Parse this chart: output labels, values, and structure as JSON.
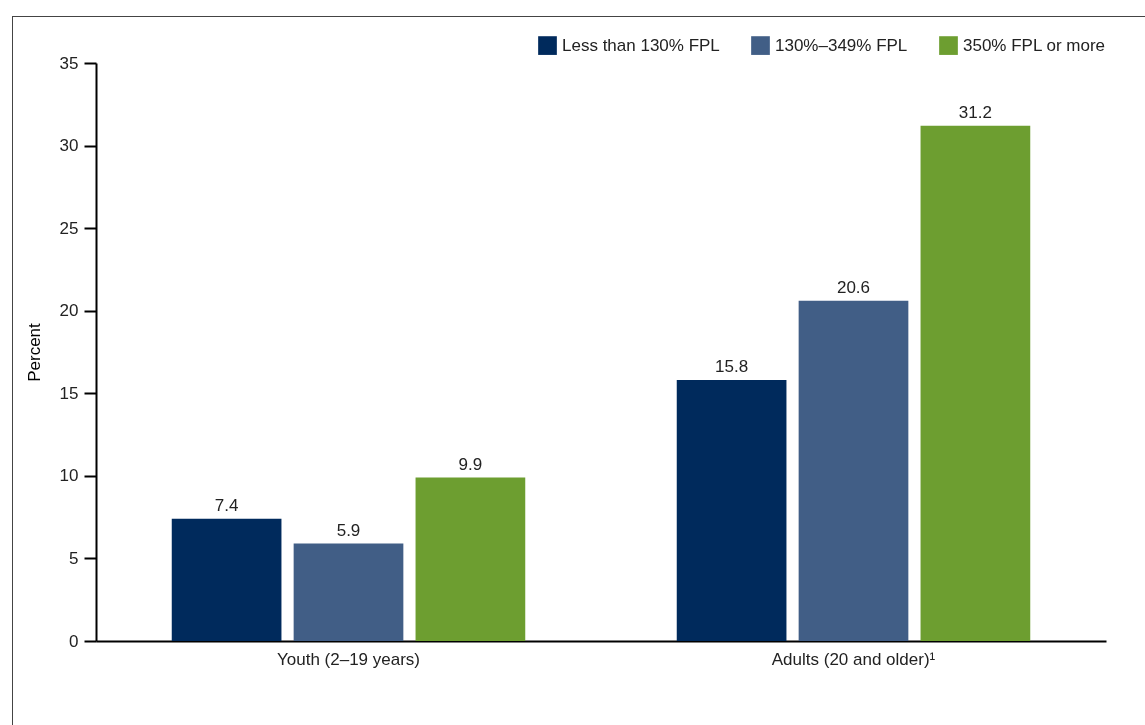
{
  "chart_data": {
    "type": "bar",
    "ylabel": "Percent",
    "categories": [
      "Youth (2–19 years)",
      "Adults (20 and older)¹"
    ],
    "series": [
      {
        "name": "Less than 130% FPL",
        "color": "#002a5c",
        "values": [
          7.4,
          15.8
        ]
      },
      {
        "name": "130%–349% FPL",
        "color": "#415e86",
        "values": [
          5.9,
          20.6
        ]
      },
      {
        "name": "350% FPL or more",
        "color": "#6d9e30",
        "values": [
          9.9,
          31.2
        ]
      }
    ],
    "ylim": [
      0,
      35
    ],
    "yticks": [
      0,
      5,
      10,
      15,
      20,
      25,
      30,
      35
    ],
    "grid": false,
    "legend": "top right",
    "data_labels": true
  }
}
